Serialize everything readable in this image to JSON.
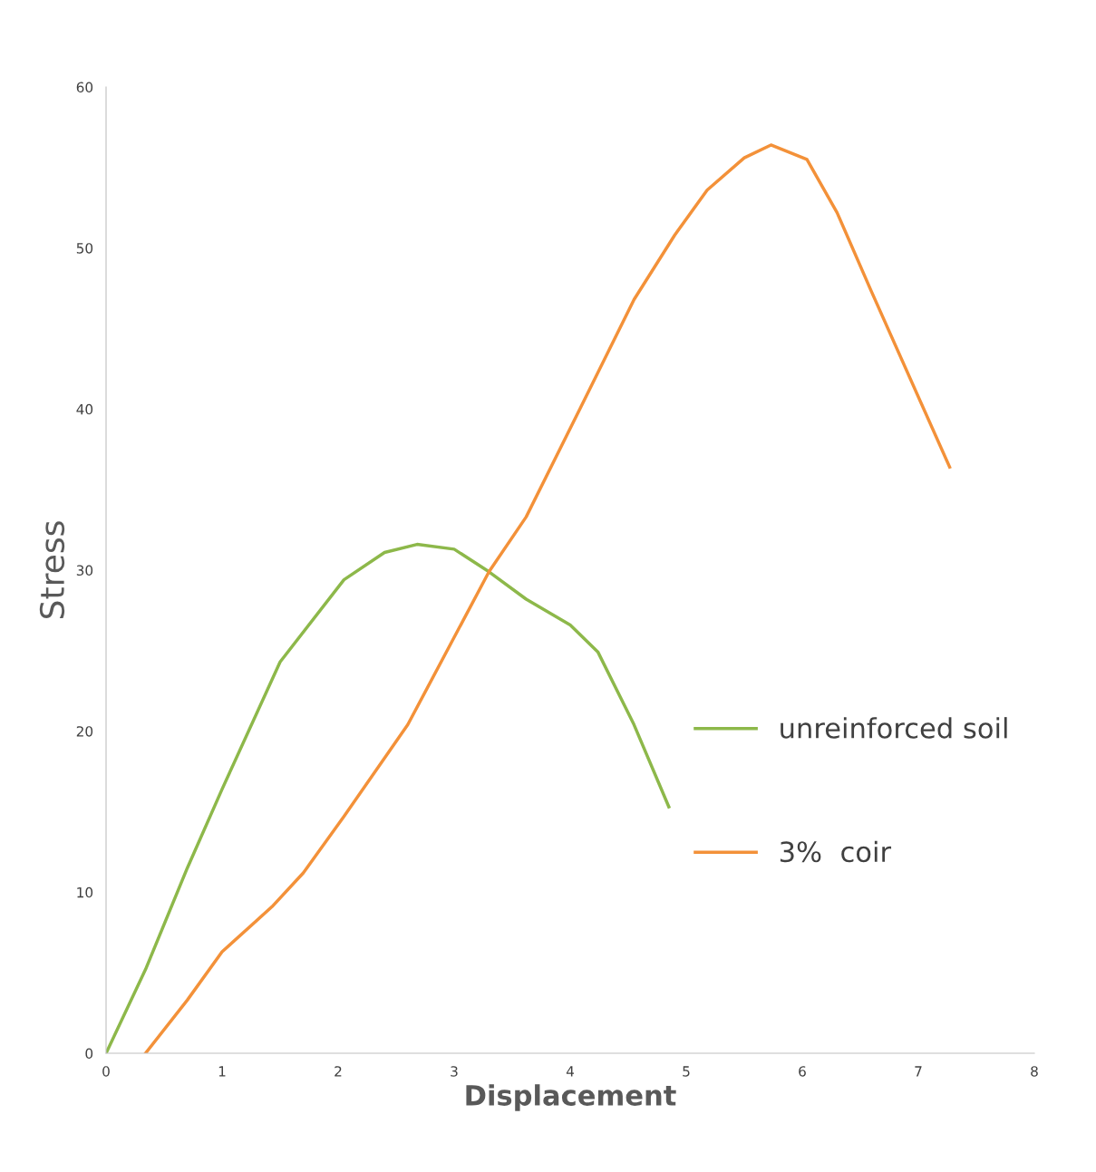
{
  "chart_data": {
    "type": "line",
    "xlabel": "Displacement",
    "ylabel": "Stress",
    "xlim": [
      0,
      8
    ],
    "ylim": [
      0,
      60
    ],
    "xticks": [
      0,
      1,
      2,
      3,
      4,
      5,
      6,
      7,
      8
    ],
    "yticks": [
      0,
      10,
      20,
      30,
      40,
      50,
      60
    ],
    "grid": false,
    "legend": "right",
    "marker": "none",
    "line_style": "solid",
    "series": [
      {
        "name": "unreinforced soil",
        "color": "#8db84a",
        "x": [
          0,
          0.34,
          0.7,
          1.0,
          1.5,
          2.05,
          2.4,
          2.68,
          3.0,
          3.3,
          3.62,
          4.0,
          4.24,
          4.55,
          4.85
        ],
        "values": [
          0,
          5.2,
          11.5,
          16.4,
          24.3,
          29.4,
          31.1,
          31.6,
          31.3,
          29.9,
          28.2,
          26.6,
          24.9,
          20.4,
          15.3
        ]
      },
      {
        "name": "3%  coir",
        "color": "#f39139",
        "x": [
          0.34,
          0.7,
          1.0,
          1.43,
          1.7,
          2.05,
          2.6,
          3.3,
          3.62,
          4.09,
          4.55,
          4.9,
          5.18,
          5.5,
          5.73,
          6.04,
          6.3,
          6.59,
          7.27
        ],
        "values": [
          0,
          3.3,
          6.3,
          9.1,
          11.2,
          14.7,
          20.4,
          29.9,
          33.3,
          40.1,
          46.8,
          50.8,
          53.6,
          55.6,
          56.4,
          55.5,
          52.2,
          47.4,
          36.4
        ]
      }
    ]
  }
}
